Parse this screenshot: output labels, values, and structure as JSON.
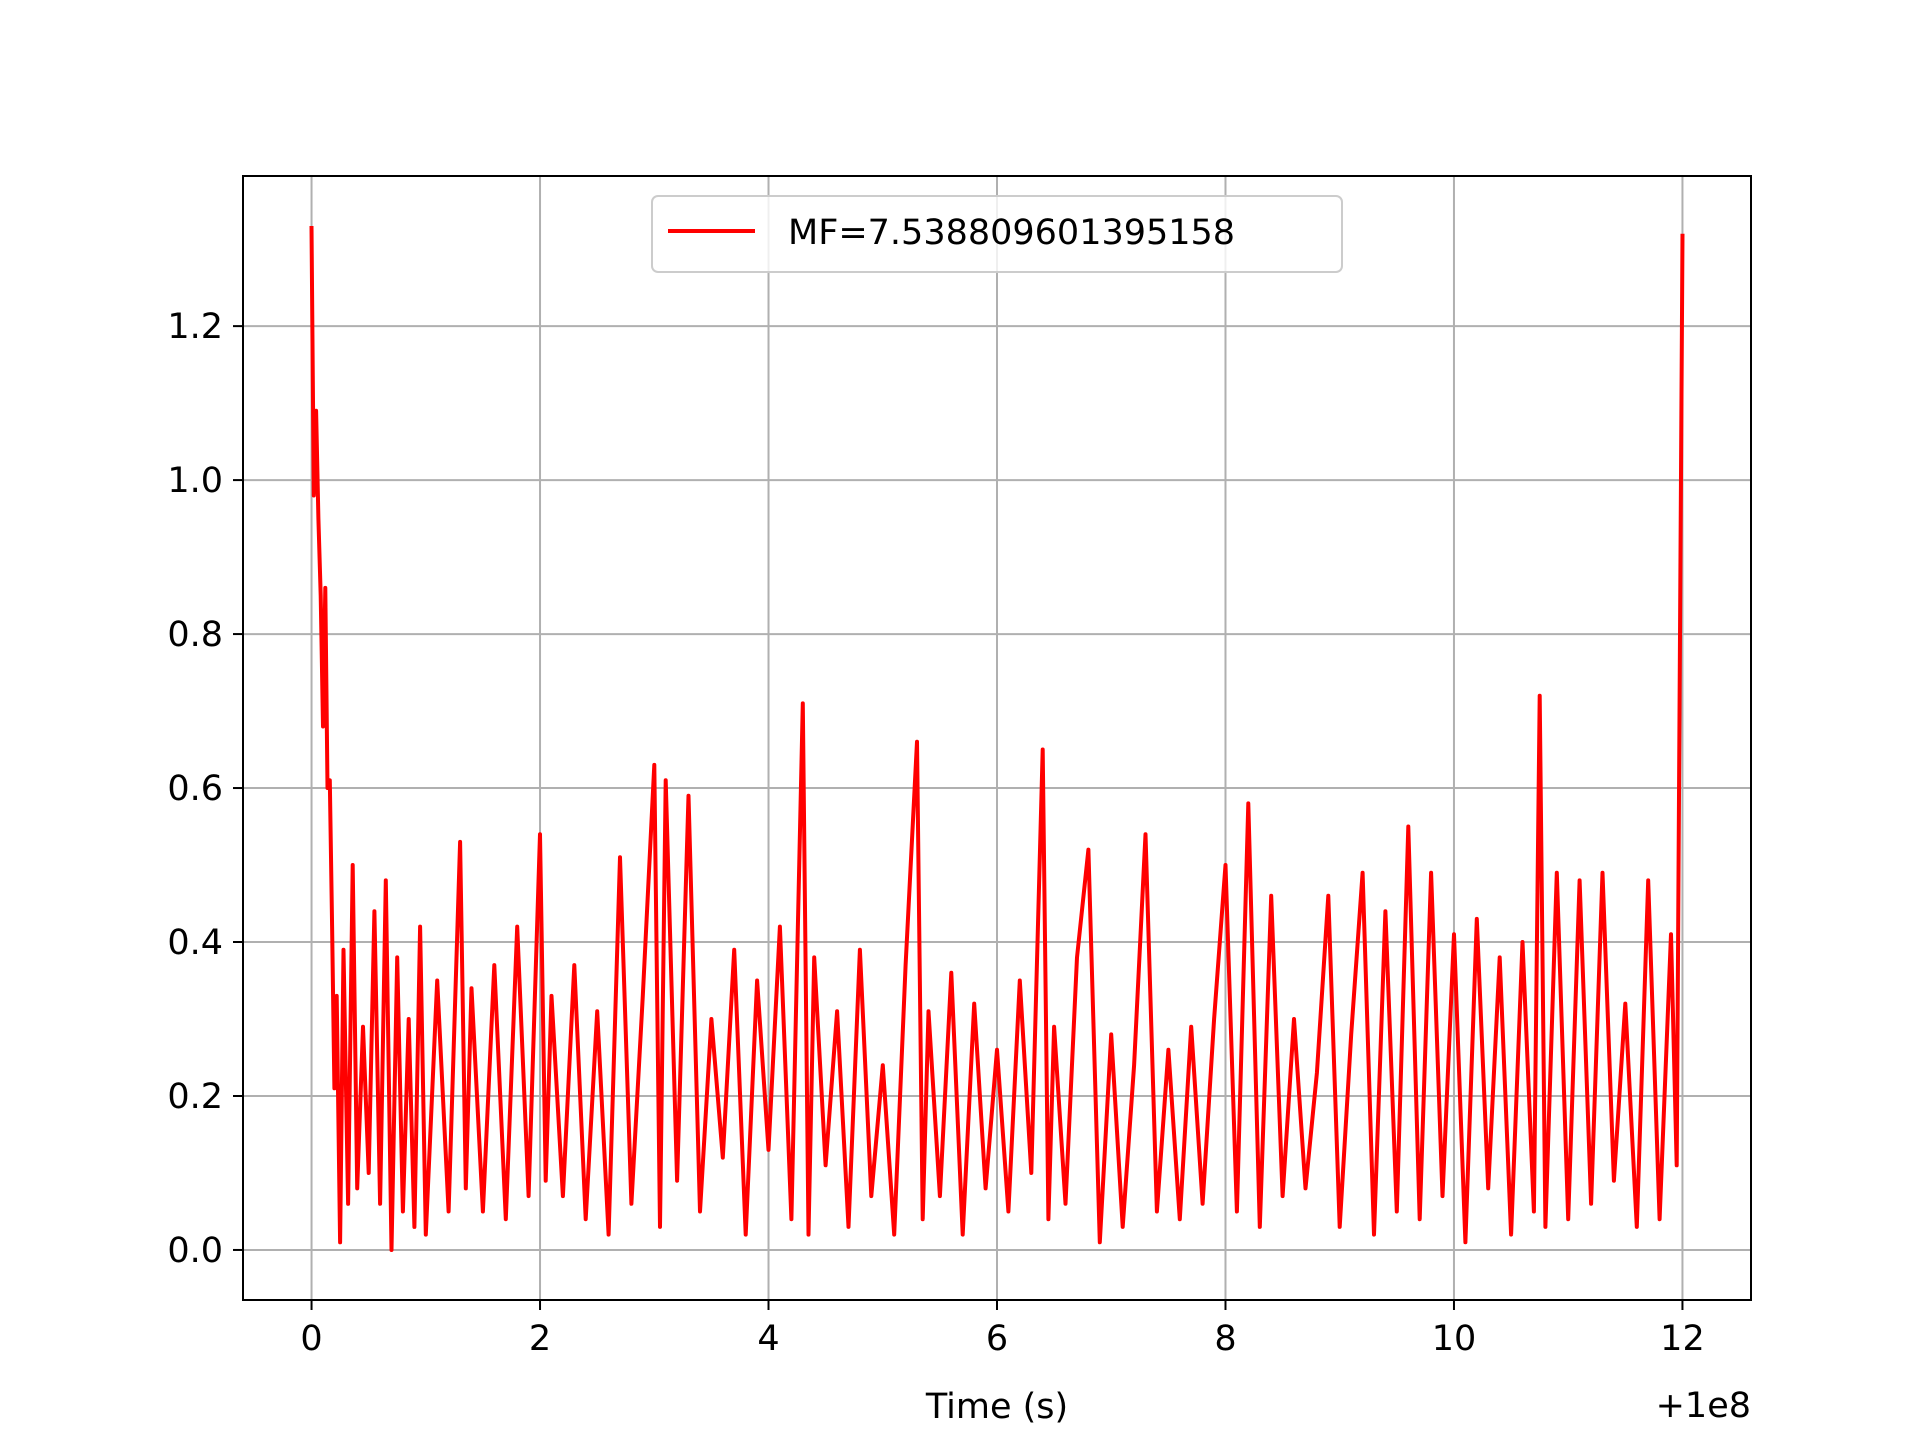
{
  "chart_data": {
    "type": "line",
    "title": "",
    "xlabel": "Time (s)",
    "ylabel": "",
    "x_offset_label": "+1e8",
    "xlim": [
      -0.6,
      12.6
    ],
    "ylim": [
      -0.065,
      1.395
    ],
    "x_ticks": [
      0,
      2,
      4,
      6,
      8,
      10,
      12
    ],
    "x_tick_labels": [
      "0",
      "2",
      "4",
      "6",
      "8",
      "10",
      "12"
    ],
    "y_ticks": [
      0.0,
      0.2,
      0.4,
      0.6,
      0.8,
      1.0,
      1.2
    ],
    "y_tick_labels": [
      "0.0",
      "0.2",
      "0.4",
      "0.6",
      "0.8",
      "1.0",
      "1.2"
    ],
    "grid": true,
    "legend_position": "top-center",
    "series": [
      {
        "name": "MF=7.538809601395158",
        "color": "#ff0000",
        "x": [
          0.0,
          0.02,
          0.04,
          0.06,
          0.08,
          0.1,
          0.12,
          0.14,
          0.16,
          0.18,
          0.2,
          0.22,
          0.25,
          0.28,
          0.32,
          0.36,
          0.4,
          0.45,
          0.5,
          0.55,
          0.6,
          0.65,
          0.7,
          0.75,
          0.8,
          0.85,
          0.9,
          0.95,
          1.0,
          1.1,
          1.2,
          1.3,
          1.35,
          1.4,
          1.5,
          1.6,
          1.7,
          1.8,
          1.9,
          2.0,
          2.05,
          2.1,
          2.2,
          2.3,
          2.4,
          2.5,
          2.6,
          2.7,
          2.8,
          2.9,
          3.0,
          3.05,
          3.1,
          3.2,
          3.3,
          3.4,
          3.5,
          3.6,
          3.7,
          3.8,
          3.9,
          4.0,
          4.1,
          4.2,
          4.3,
          4.35,
          4.4,
          4.5,
          4.6,
          4.7,
          4.8,
          4.9,
          5.0,
          5.1,
          5.2,
          5.3,
          5.35,
          5.4,
          5.5,
          5.6,
          5.7,
          5.8,
          5.9,
          6.0,
          6.1,
          6.2,
          6.3,
          6.4,
          6.45,
          6.5,
          6.6,
          6.7,
          6.8,
          6.9,
          7.0,
          7.1,
          7.2,
          7.3,
          7.4,
          7.5,
          7.6,
          7.7,
          7.8,
          7.9,
          8.0,
          8.1,
          8.2,
          8.3,
          8.4,
          8.5,
          8.6,
          8.7,
          8.8,
          8.9,
          9.0,
          9.1,
          9.2,
          9.3,
          9.4,
          9.5,
          9.6,
          9.7,
          9.8,
          9.9,
          10.0,
          10.1,
          10.2,
          10.3,
          10.4,
          10.5,
          10.6,
          10.7,
          10.75,
          10.8,
          10.9,
          11.0,
          11.1,
          11.2,
          11.3,
          11.4,
          11.5,
          11.6,
          11.7,
          11.8,
          11.9,
          11.95,
          12.0
        ],
        "y": [
          1.33,
          0.98,
          1.09,
          0.95,
          0.85,
          0.68,
          0.86,
          0.6,
          0.61,
          0.42,
          0.21,
          0.33,
          0.01,
          0.39,
          0.06,
          0.5,
          0.08,
          0.29,
          0.1,
          0.44,
          0.06,
          0.48,
          0.0,
          0.38,
          0.05,
          0.3,
          0.03,
          0.42,
          0.02,
          0.35,
          0.05,
          0.53,
          0.08,
          0.34,
          0.05,
          0.37,
          0.04,
          0.42,
          0.07,
          0.54,
          0.09,
          0.33,
          0.07,
          0.37,
          0.04,
          0.31,
          0.02,
          0.51,
          0.06,
          0.33,
          0.63,
          0.03,
          0.61,
          0.09,
          0.59,
          0.05,
          0.3,
          0.12,
          0.39,
          0.02,
          0.35,
          0.13,
          0.42,
          0.04,
          0.71,
          0.02,
          0.38,
          0.11,
          0.31,
          0.03,
          0.39,
          0.07,
          0.24,
          0.02,
          0.37,
          0.66,
          0.04,
          0.31,
          0.07,
          0.36,
          0.02,
          0.32,
          0.08,
          0.26,
          0.05,
          0.35,
          0.1,
          0.65,
          0.04,
          0.29,
          0.06,
          0.38,
          0.52,
          0.01,
          0.28,
          0.03,
          0.24,
          0.54,
          0.05,
          0.26,
          0.04,
          0.29,
          0.06,
          0.3,
          0.5,
          0.05,
          0.58,
          0.03,
          0.46,
          0.07,
          0.3,
          0.08,
          0.23,
          0.46,
          0.03,
          0.28,
          0.49,
          0.02,
          0.44,
          0.05,
          0.55,
          0.04,
          0.49,
          0.07,
          0.41,
          0.01,
          0.43,
          0.08,
          0.38,
          0.02,
          0.4,
          0.05,
          0.72,
          0.03,
          0.49,
          0.04,
          0.48,
          0.06,
          0.49,
          0.09,
          0.32,
          0.03,
          0.48,
          0.04,
          0.41,
          0.11,
          1.32
        ]
      }
    ]
  }
}
